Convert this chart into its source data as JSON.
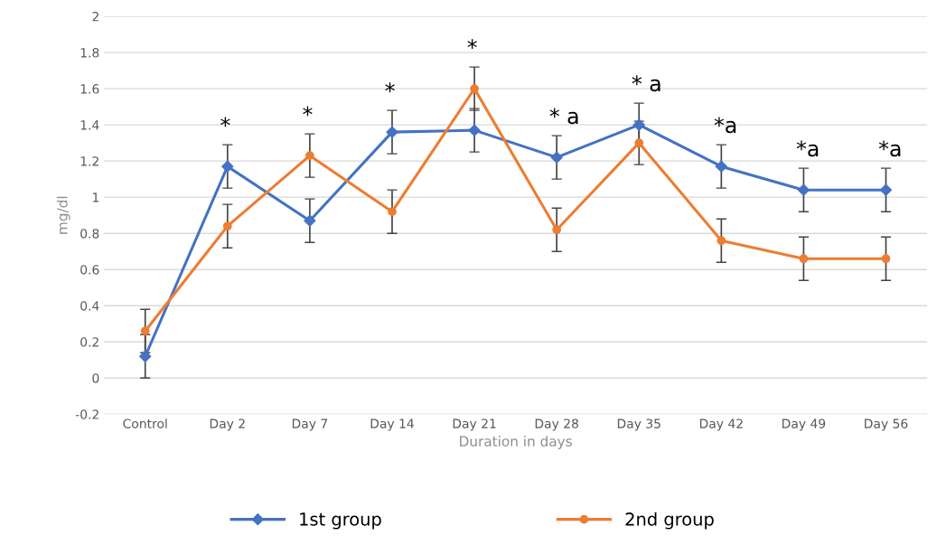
{
  "chart_data": {
    "type": "line",
    "xlabel": "Duration in days",
    "ylabel": "mg/dl",
    "categories": [
      "Control",
      "Day 2",
      "Day 7",
      "Day 14",
      "Day 21",
      "Day 28",
      "Day 35",
      "Day 42",
      "Day 49",
      "Day 56"
    ],
    "series": [
      {
        "name": "1st group",
        "color": "#4472c4",
        "marker": "diamond",
        "values": [
          0.12,
          1.17,
          0.87,
          1.36,
          1.37,
          1.22,
          1.4,
          1.17,
          1.04,
          1.04
        ],
        "errors": [
          0.12,
          0.12,
          0.12,
          0.12,
          0.12,
          0.12,
          0.12,
          0.12,
          0.12,
          0.12
        ]
      },
      {
        "name": "2nd group",
        "color": "#ed7d31",
        "marker": "circle",
        "values": [
          0.26,
          0.84,
          1.23,
          0.92,
          1.6,
          0.82,
          1.3,
          0.76,
          0.66,
          0.66
        ],
        "errors": [
          0.12,
          0.12,
          0.12,
          0.12,
          0.12,
          0.12,
          0.12,
          0.12,
          0.12,
          0.12
        ]
      }
    ],
    "ylim": [
      -0.2,
      2
    ],
    "yticks": [
      -0.2,
      0,
      0.2,
      0.4,
      0.6,
      0.8,
      1,
      1.2,
      1.4,
      1.6,
      1.8,
      2
    ],
    "grid": "y",
    "legend": "bottom",
    "annotations": [
      "*",
      "*",
      "*",
      "*",
      "* a",
      "* a",
      "*a",
      "*a",
      "*a"
    ]
  }
}
